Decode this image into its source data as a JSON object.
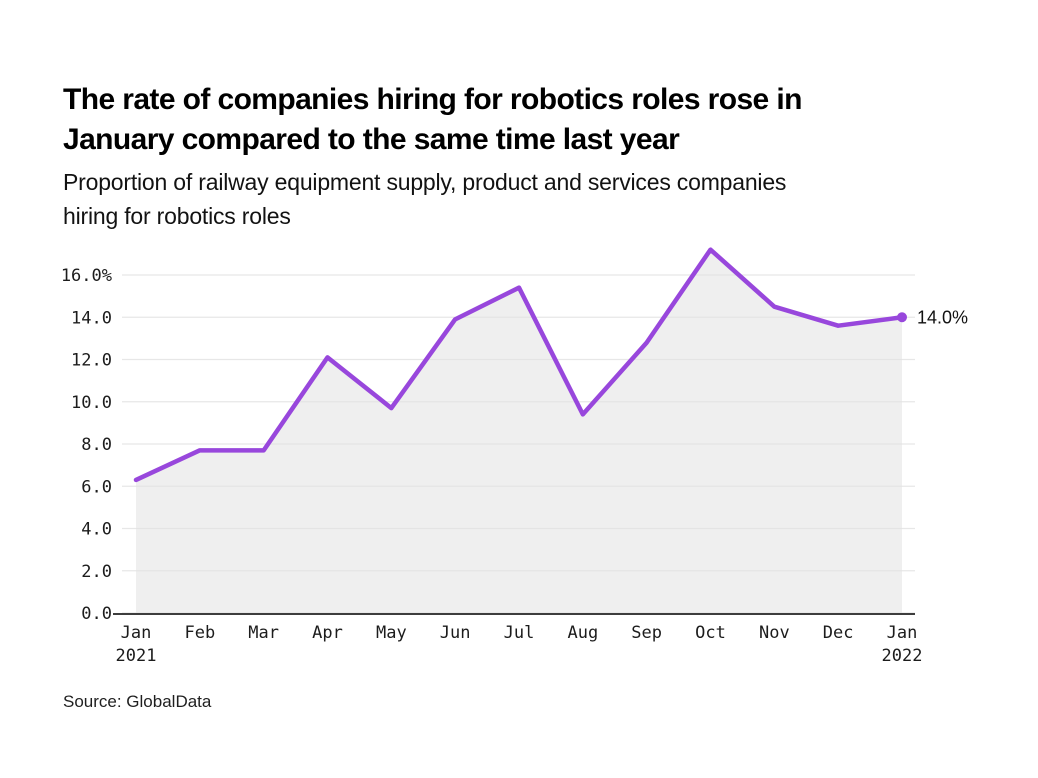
{
  "header": {
    "title_lines": [
      "The rate of companies hiring for robotics roles rose in",
      "January compared to the same time last year"
    ],
    "subtitle_lines": [
      "Proportion of railway equipment supply, product and services companies",
      "hiring for robotics roles"
    ]
  },
  "chart_data": {
    "type": "line",
    "area_fill": true,
    "title": "The rate of companies hiring for robotics roles rose in January compared to the same time last year",
    "subtitle": "Proportion of railway equipment supply, product and services companies hiring for robotics roles",
    "categories": [
      "Jan",
      "Feb",
      "Mar",
      "Apr",
      "May",
      "Jun",
      "Jul",
      "Aug",
      "Sep",
      "Oct",
      "Nov",
      "Dec",
      "Jan"
    ],
    "category_sublabels": [
      {
        "index": 0,
        "label": "2021"
      },
      {
        "index": 12,
        "label": "2022"
      }
    ],
    "values": [
      6.3,
      7.7,
      7.7,
      12.1,
      9.7,
      13.9,
      15.4,
      9.4,
      12.8,
      17.2,
      14.5,
      13.6,
      14.0
    ],
    "unit": "%",
    "y_ticks": [
      {
        "v": 16,
        "label": "16.0%"
      },
      {
        "v": 14,
        "label": "14.0"
      },
      {
        "v": 12,
        "label": "12.0"
      },
      {
        "v": 10,
        "label": "10.0"
      },
      {
        "v": 8,
        "label": "8.0"
      },
      {
        "v": 6,
        "label": "6.0"
      },
      {
        "v": 4,
        "label": "4.0"
      },
      {
        "v": 2,
        "label": "2.0"
      },
      {
        "v": 0,
        "label": "0.0"
      }
    ],
    "ylim": [
      0,
      16
    ],
    "grid": true,
    "legend": "none",
    "end_annotation": "14.0%",
    "colors": {
      "line": "#9847DC",
      "area": "#EFEFEF",
      "grid": "#E3E3E3",
      "axis": "#3D3D3D",
      "tick_text": "#1C1C1C",
      "annotation_text": "#111111"
    }
  },
  "footer": {
    "source": "Source: GlobalData"
  }
}
